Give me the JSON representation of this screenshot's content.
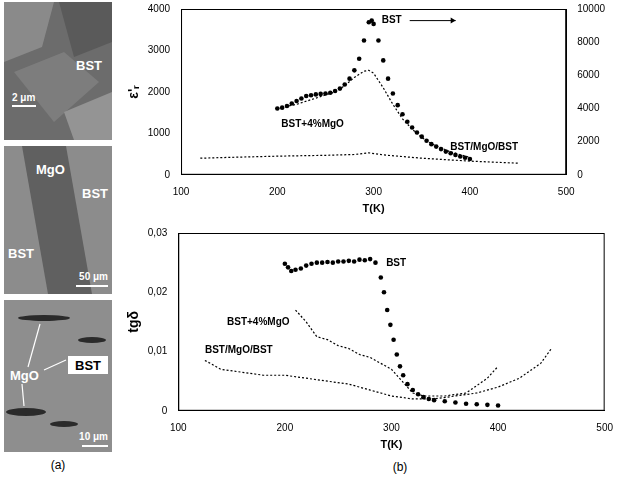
{
  "images": [
    {
      "texts": [
        "BST"
      ],
      "scale_bar": "2 μm"
    },
    {
      "texts": [
        "MgO",
        "BST",
        "BST"
      ],
      "scale_bar": "50 μm"
    },
    {
      "texts": [
        "MgO",
        "BST"
      ],
      "scale_bar": "10 μm"
    }
  ],
  "panel_labels": [
    "(a)",
    "(b)"
  ],
  "chart_data": [
    {
      "type": "line",
      "x_label": "T(K)",
      "y_label": "ε'ᵣ",
      "xlim": [
        100,
        500
      ],
      "xticks": [
        100,
        200,
        300,
        400,
        500
      ],
      "ylim": [
        0,
        4000
      ],
      "yticks": [
        0,
        1000,
        2000,
        3000,
        4000
      ],
      "y2lim": [
        0,
        10000
      ],
      "y2ticks": [
        0,
        2000,
        4000,
        6000,
        8000,
        10000
      ],
      "grid": false,
      "series": [
        {
          "name": "BST",
          "color": "#000000",
          "axis": "y2",
          "marker": "circle",
          "line_style": "none",
          "x": [
            200,
            205,
            210,
            215,
            220,
            225,
            230,
            235,
            240,
            245,
            250,
            255,
            260,
            265,
            270,
            275,
            280,
            285,
            290,
            295,
            298,
            300,
            305,
            310,
            315,
            320,
            325,
            330,
            335,
            340,
            345,
            350,
            355,
            360,
            365,
            370,
            375,
            380,
            385,
            390,
            395,
            400
          ],
          "values": [
            4000,
            4050,
            4150,
            4300,
            4450,
            4600,
            4750,
            4800,
            4850,
            4880,
            4900,
            4950,
            5050,
            5200,
            5450,
            5800,
            6300,
            7000,
            8100,
            9200,
            9300,
            9100,
            8100,
            6900,
            5800,
            4900,
            4200,
            3650,
            3200,
            2850,
            2550,
            2300,
            2050,
            1850,
            1700,
            1550,
            1400,
            1300,
            1200,
            1100,
            1030,
            950
          ]
        },
        {
          "name": "BST+4%MgO",
          "color": "#000000",
          "marker": "none",
          "line_style": "dotted",
          "x": [
            200,
            220,
            240,
            260,
            270,
            280,
            290,
            295,
            300,
            310,
            320,
            330,
            340,
            350,
            360,
            380,
            400
          ],
          "values": [
            1600,
            1700,
            1850,
            2000,
            2150,
            2350,
            2500,
            2520,
            2450,
            2100,
            1700,
            1350,
            1100,
            900,
            750,
            550,
            420
          ]
        },
        {
          "name": "BST/MgO/BST",
          "color": "#000000",
          "marker": "none",
          "line_style": "dotted",
          "x": [
            120,
            150,
            200,
            250,
            280,
            295,
            310,
            350,
            400,
            450
          ],
          "values": [
            400,
            420,
            450,
            470,
            490,
            530,
            480,
            400,
            330,
            280
          ]
        }
      ]
    },
    {
      "type": "line",
      "x_label": "T(K)",
      "y_label": "tgδ",
      "xlim": [
        100,
        500
      ],
      "xticks": [
        100,
        200,
        300,
        400,
        500
      ],
      "ylim": [
        0,
        0.03
      ],
      "yticks": [
        0,
        {
          "value": 0.01,
          "label": "0,01"
        },
        {
          "value": 0.02,
          "label": "0,02"
        },
        {
          "value": 0.03,
          "label": "0,03"
        }
      ],
      "grid": false,
      "series": [
        {
          "name": "BST",
          "color": "#000000",
          "marker": "circle",
          "line_style": "none",
          "x": [
            200,
            203,
            206,
            210,
            215,
            220,
            225,
            230,
            235,
            240,
            245,
            250,
            255,
            260,
            265,
            270,
            275,
            280,
            285,
            290,
            293,
            296,
            299,
            302,
            305,
            308,
            311,
            315,
            320,
            325,
            330,
            335,
            340,
            350,
            360,
            370,
            380,
            390,
            400
          ],
          "values": [
            0.0248,
            0.0242,
            0.0236,
            0.0238,
            0.024,
            0.0245,
            0.0248,
            0.025,
            0.025,
            0.0251,
            0.025,
            0.0252,
            0.0252,
            0.0253,
            0.0252,
            0.0255,
            0.0254,
            0.0256,
            0.025,
            0.0225,
            0.02,
            0.017,
            0.0145,
            0.012,
            0.0095,
            0.0075,
            0.006,
            0.0045,
            0.0035,
            0.0028,
            0.0023,
            0.002,
            0.0018,
            0.0016,
            0.0014,
            0.0012,
            0.0011,
            0.001,
            0.0009
          ]
        },
        {
          "name": "BST+4%MgO",
          "color": "#000000",
          "marker": "none",
          "line_style": "dotted",
          "x": [
            210,
            220,
            230,
            240,
            250,
            260,
            270,
            280,
            290,
            300,
            310,
            320,
            330,
            350,
            370,
            390,
            400
          ],
          "values": [
            0.017,
            0.015,
            0.0125,
            0.012,
            0.011,
            0.0105,
            0.0095,
            0.009,
            0.008,
            0.007,
            0.005,
            0.003,
            0.0025,
            0.0025,
            0.003,
            0.0055,
            0.0075
          ]
        },
        {
          "name": "BST/MgO/BST",
          "color": "#000000",
          "marker": "none",
          "line_style": "dotted",
          "x": [
            125,
            140,
            160,
            180,
            200,
            220,
            240,
            260,
            270,
            280,
            290,
            300,
            320,
            340,
            360,
            380,
            400,
            420,
            440,
            450
          ],
          "values": [
            0.0085,
            0.007,
            0.0065,
            0.006,
            0.006,
            0.0055,
            0.005,
            0.0045,
            0.004,
            0.0035,
            0.003,
            0.0025,
            0.002,
            0.002,
            0.0025,
            0.003,
            0.004,
            0.0055,
            0.008,
            0.0105
          ]
        }
      ]
    }
  ]
}
